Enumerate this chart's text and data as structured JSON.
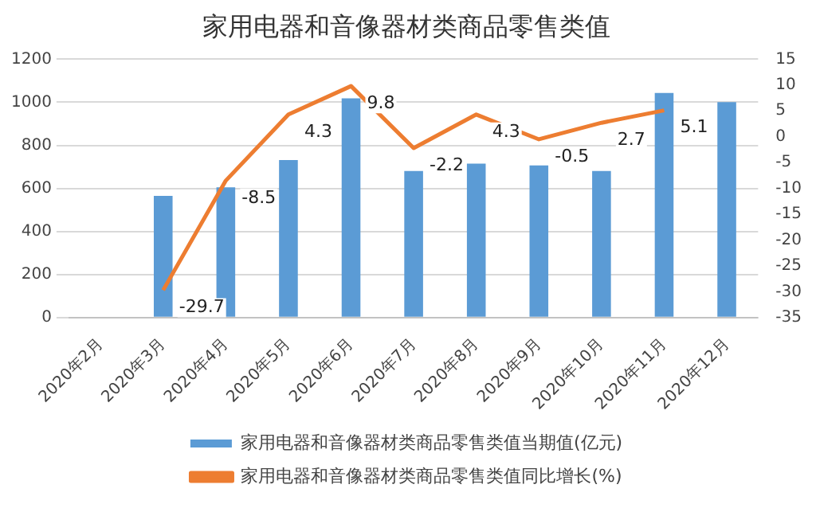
{
  "chart_data": {
    "type": "bar",
    "title": "家用电器和音像器材类商品零售类值",
    "categories": [
      "2020年2月",
      "2020年3月",
      "2020年4月",
      "2020年5月",
      "2020年6月",
      "2020年7月",
      "2020年8月",
      "2020年9月",
      "2020年10月",
      "2020年11月",
      "2020年12月"
    ],
    "series": [
      {
        "name": "家用电器和音像器材类商品零售类值当期值(亿元)",
        "color": "#5b9bd5",
        "values": [
          null,
          565,
          605,
          732,
          1018,
          681,
          715,
          707,
          681,
          1043,
          1001
        ]
      },
      {
        "name": "家用电器和音像器材类商品零售类值同比增长(%)",
        "type": "line",
        "axis": "y2",
        "color": "#ed7d31",
        "values": [
          null,
          -29.7,
          -8.5,
          4.3,
          9.8,
          -2.2,
          4.3,
          -0.5,
          2.7,
          5.1,
          null
        ],
        "value_labels": [
          null,
          "-29.7",
          "-8.5",
          "4.3",
          "9.8",
          "-2.2",
          "4.3",
          "-0.5",
          "2.7",
          "5.1",
          null
        ]
      }
    ],
    "ylim": [
      0,
      1200
    ],
    "yticks": [
      0,
      200,
      400,
      600,
      800,
      1000,
      1200
    ],
    "y2lim": [
      -35,
      15
    ],
    "y2ticks": [
      -35,
      -30,
      -25,
      -20,
      -15,
      -10,
      -5,
      0,
      5,
      10,
      15
    ],
    "grid": "y",
    "legend": "bottom",
    "marker": "none"
  }
}
